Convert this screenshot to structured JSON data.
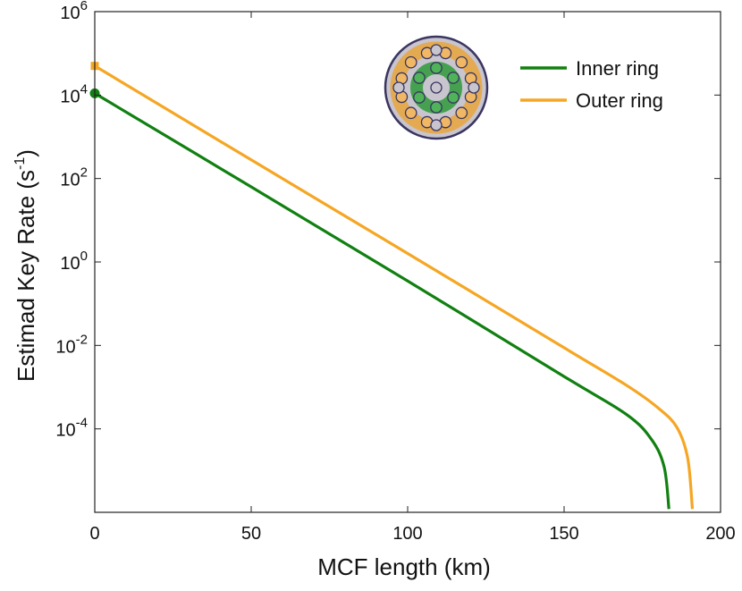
{
  "chart_data": {
    "type": "line",
    "xlabel": "MCF length (km)",
    "ylabel": "Estimad Key Rate (s",
    "ylabel_sup": "-1",
    "ylabel_close": ")",
    "yscale": "log",
    "xlim": [
      0,
      200
    ],
    "ylim_exponents": [
      -6,
      6
    ],
    "x_ticks": [
      "0",
      "50",
      "100",
      "150",
      "200"
    ],
    "y_ticks": [
      {
        "base": "10",
        "exp": "6"
      },
      {
        "base": "10",
        "exp": "4"
      },
      {
        "base": "10",
        "exp": "2"
      },
      {
        "base": "10",
        "exp": "0"
      },
      {
        "base": "10",
        "exp": "-2"
      },
      {
        "base": "10",
        "exp": "-4"
      }
    ],
    "grid": false,
    "legend_position": "top-right",
    "series": [
      {
        "name": "Inner ring",
        "color": "#118011",
        "marker": "circle",
        "points": [
          [
            0,
            11000
          ],
          [
            50,
            63
          ],
          [
            100,
            0.35
          ],
          [
            150,
            0.0018
          ],
          [
            170,
            0.00022
          ],
          [
            178,
            5.5e-05
          ],
          [
            182,
            1.2e-05
          ],
          [
            183.5,
            1.2e-06
          ]
        ]
      },
      {
        "name": "Outer ring",
        "color": "#F5A623",
        "marker": "square",
        "points": [
          [
            0,
            50000
          ],
          [
            50,
            280
          ],
          [
            100,
            1.6
          ],
          [
            150,
            0.0088
          ],
          [
            170,
            0.0011
          ],
          [
            180,
            0.00032
          ],
          [
            186,
            0.00011
          ],
          [
            189.5,
            2e-05
          ],
          [
            191,
            1.2e-06
          ]
        ]
      }
    ]
  },
  "inset": {
    "icon": "multicore-fiber-cross-section-icon",
    "cladding_color": "#c8c5cf",
    "outline_color": "#3a3560",
    "inner_core_color": "#2e9a3a",
    "outer_core_color": "#e8a53c"
  }
}
